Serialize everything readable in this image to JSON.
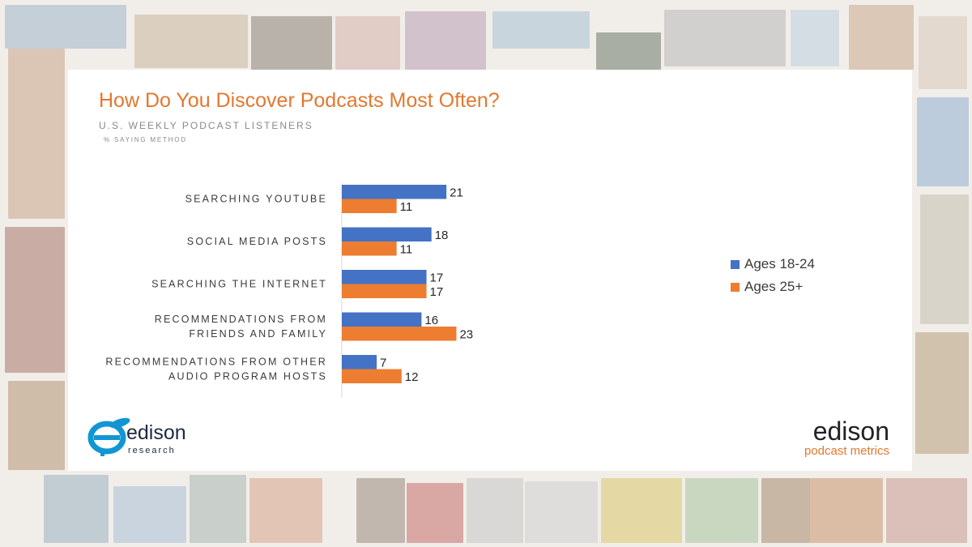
{
  "slide": {
    "title": "How Do You Discover Podcasts Most Often?",
    "subtitle": "U.S. WEEKLY PODCAST LISTENERS",
    "note": "% SAYING METHOD"
  },
  "colors": {
    "accent": "#e2782f",
    "series1": "#4472c4",
    "series2": "#ed7d31"
  },
  "chart_data": {
    "type": "bar",
    "orientation": "horizontal",
    "title": "How Do You Discover Podcasts Most Often?",
    "categories": [
      [
        "SEARCHING YOUTUBE"
      ],
      [
        "SOCIAL MEDIA POSTS"
      ],
      [
        "SEARCHING THE INTERNET"
      ],
      [
        "RECOMMENDATIONS FROM",
        "FRIENDS AND FAMILY"
      ],
      [
        "RECOMMENDATIONS FROM OTHER",
        "AUDIO PROGRAM HOSTS"
      ]
    ],
    "series": [
      {
        "name": "Ages 18-24",
        "values": [
          21,
          18,
          17,
          16,
          7
        ]
      },
      {
        "name": "Ages 25+",
        "values": [
          11,
          11,
          17,
          23,
          12
        ]
      }
    ],
    "xlim": [
      0,
      25
    ],
    "legend": "right",
    "grid": false
  },
  "logos": {
    "left": {
      "word": "edison",
      "sub": "research"
    },
    "right": {
      "word": "edison",
      "sub": "podcast metrics"
    }
  }
}
